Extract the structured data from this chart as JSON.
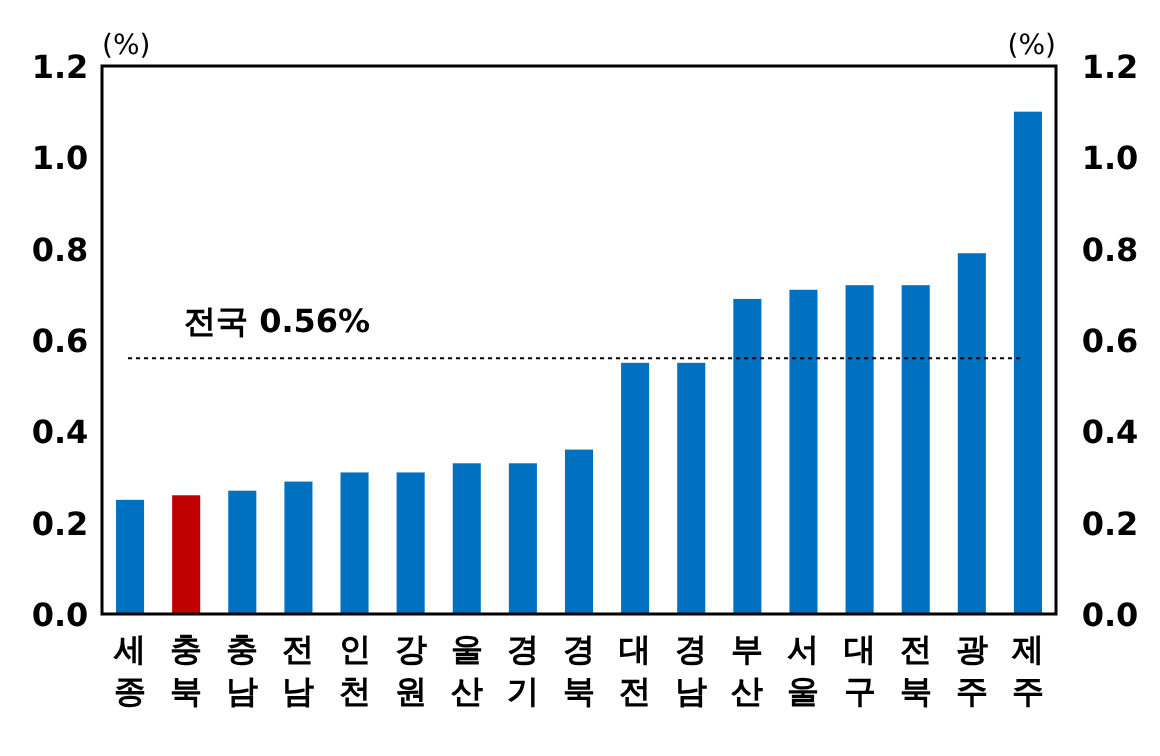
{
  "chart_data": {
    "type": "bar",
    "ylabel": "(%)",
    "y2label": "(%)",
    "categories": [
      "세종",
      "충북",
      "충남",
      "전남",
      "인천",
      "강원",
      "울산",
      "경기",
      "경북",
      "대전",
      "경남",
      "부산",
      "서울",
      "대구",
      "전북",
      "광주",
      "제주"
    ],
    "values": [
      0.25,
      0.26,
      0.27,
      0.29,
      0.31,
      0.31,
      0.33,
      0.33,
      0.36,
      0.55,
      0.55,
      0.69,
      0.71,
      0.72,
      0.72,
      0.79,
      1.1
    ],
    "colors": [
      "#0070c0",
      "#c00000",
      "#0070c0",
      "#0070c0",
      "#0070c0",
      "#0070c0",
      "#0070c0",
      "#0070c0",
      "#0070c0",
      "#0070c0",
      "#0070c0",
      "#0070c0",
      "#0070c0",
      "#0070c0",
      "#0070c0",
      "#0070c0",
      "#0070c0"
    ],
    "ylim": [
      0,
      1.2
    ],
    "yticks": [
      {
        "value": 0,
        "label": "0.0"
      },
      0.2,
      0.4,
      0.6,
      0.8,
      {
        "value": 1,
        "label": "1.0"
      },
      1.2
    ],
    "y2lim": [
      0,
      1.2
    ],
    "y2ticks": [
      {
        "value": 0,
        "label": "0.0"
      },
      0.2,
      0.4,
      0.6,
      0.8,
      {
        "value": 1,
        "label": "1.0"
      },
      1.2
    ],
    "ref_lines": [
      {
        "axis": "y",
        "value": 0.56,
        "label": "전국 0.56%",
        "color": "#000000",
        "line_style": "dotted"
      }
    ],
    "grid": false
  }
}
